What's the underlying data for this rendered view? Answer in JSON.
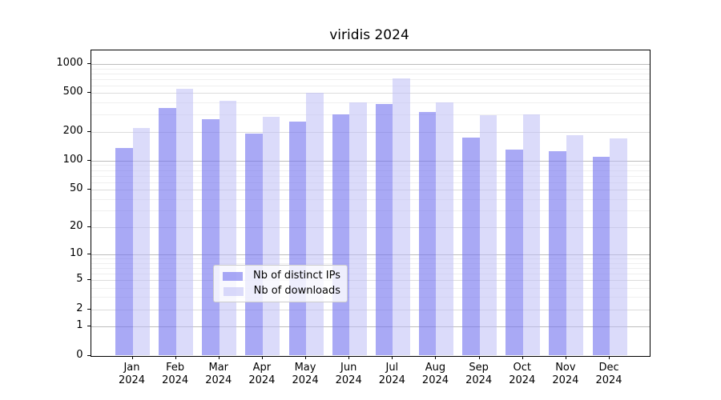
{
  "title": "viridis 2024",
  "chart_data": {
    "type": "bar",
    "title": "viridis 2024",
    "categories": [
      "Jan 2024",
      "Feb 2024",
      "Mar 2024",
      "Apr 2024",
      "May 2024",
      "Jun 2024",
      "Jul 2024",
      "Aug 2024",
      "Sep 2024",
      "Oct 2024",
      "Nov 2024",
      "Dec 2024"
    ],
    "series": [
      {
        "name": "Nb of distinct IPs",
        "color": "rgba(116,116,239,0.62)",
        "values": [
          135,
          350,
          270,
          190,
          255,
          300,
          385,
          320,
          175,
          130,
          125,
          110
        ]
      },
      {
        "name": "Nb of downloads",
        "color": "rgba(190,190,245,0.55)",
        "values": [
          220,
          550,
          415,
          285,
          505,
          405,
          705,
          405,
          295,
          305,
          185,
          170
        ]
      }
    ],
    "xlabel": "",
    "ylabel": "",
    "yscale": "log1p",
    "yticks_labeled": [
      0,
      1,
      2,
      5,
      10,
      20,
      50,
      100,
      200,
      500,
      1000
    ],
    "yticks_minor": [
      3,
      4,
      6,
      7,
      8,
      9,
      30,
      40,
      60,
      70,
      80,
      90,
      300,
      400,
      600,
      700,
      800,
      900
    ],
    "ylim": [
      0,
      1380
    ],
    "grid": "horizontal major+minor",
    "legend_position": "lower center"
  },
  "colors": {
    "bar_distinct_ips": "rgba(116,116,239,0.62)",
    "bar_downloads": "rgba(190,190,245,0.55)",
    "grid_decade": "#bdbdbd",
    "grid_mid": "#dcdcdc",
    "grid_minor": "#efefef",
    "spine": "#000000",
    "background": "#ffffff"
  }
}
